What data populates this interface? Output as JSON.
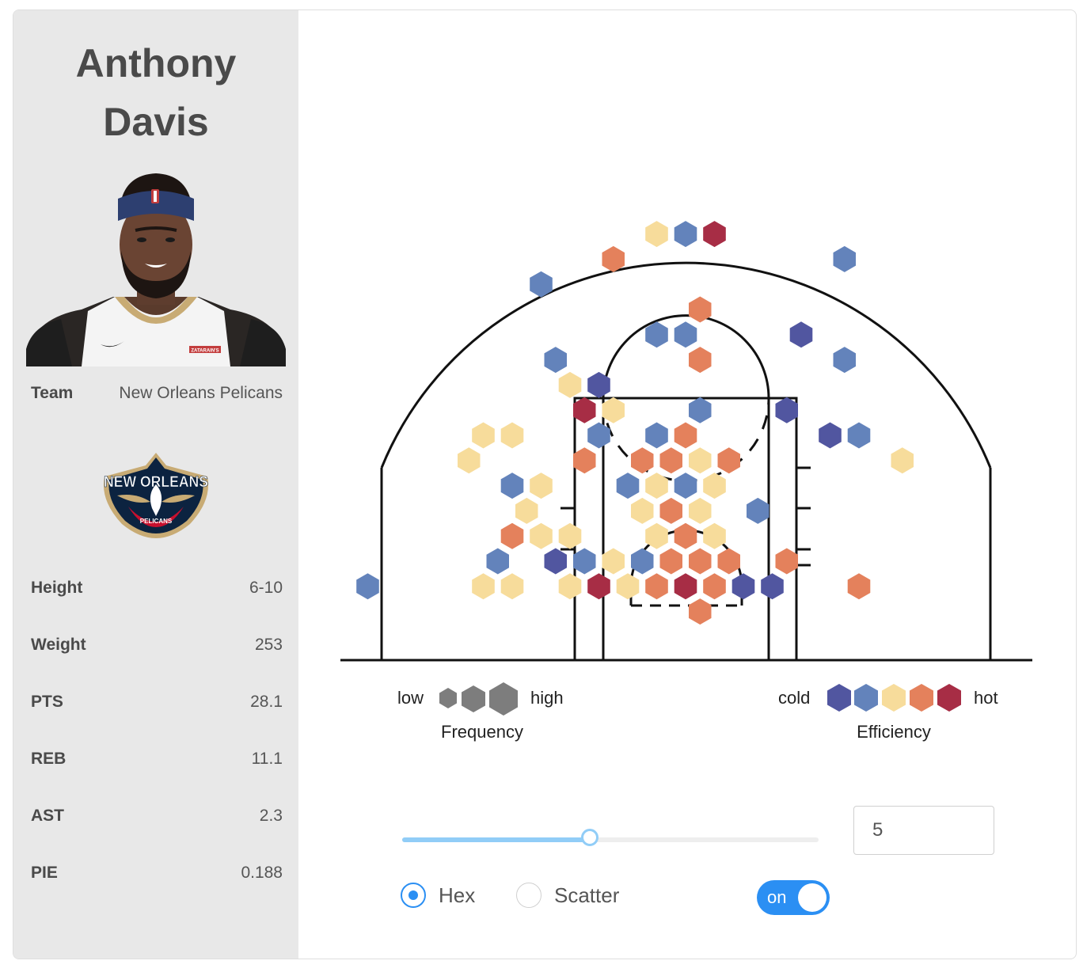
{
  "player": {
    "first_name": "Anthony",
    "last_name": "Davis",
    "team_label": "Team",
    "team_name": "New Orleans Pelicans",
    "logo_text_top": "NEW ORLEANS",
    "logo_text_bottom": "PELICANS",
    "jersey_sponsor": "ZATARAIN'S"
  },
  "stats": [
    {
      "label": "Height",
      "value": "6-10"
    },
    {
      "label": "Weight",
      "value": "253"
    },
    {
      "label": "PTS",
      "value": "28.1"
    },
    {
      "label": "REB",
      "value": "11.1"
    },
    {
      "label": "AST",
      "value": "2.3"
    },
    {
      "label": "PIE",
      "value": "0.188"
    }
  ],
  "legend": {
    "frequency_low": "low",
    "frequency_high": "high",
    "frequency_title": "Frequency",
    "efficiency_cold": "cold",
    "efficiency_hot": "hot",
    "efficiency_title": "Efficiency"
  },
  "colors": {
    "level_1": "#5156a0",
    "level_2": "#6383bb",
    "level_3": "#f7dc9b",
    "level_4": "#e4815c",
    "level_5": "#a72d45",
    "frequency_gray": "#7d7d7d",
    "accent": "#2b8ff3",
    "slider": "#91cdf7"
  },
  "controls": {
    "slider_fraction": 0.45,
    "min_count_value": "5",
    "chart_type_options": [
      {
        "label": "Hex",
        "selected": true
      },
      {
        "label": "Scatter",
        "selected": false
      }
    ],
    "toggle_label": "on",
    "toggle_on": true
  },
  "chart_data": {
    "type": "hexbin",
    "description": "shot chart",
    "columns": [
      "col",
      "row",
      "efficiency_level"
    ],
    "bins": [
      [
        -1,
        2,
        3
      ],
      [
        0,
        2,
        2
      ],
      [
        1,
        2,
        5
      ],
      [
        -3,
        3,
        4
      ],
      [
        5,
        3,
        2
      ],
      [
        -5,
        4,
        2
      ],
      [
        0,
        5,
        4
      ],
      [
        -1,
        6,
        2
      ],
      [
        0,
        6,
        2
      ],
      [
        4,
        6,
        1
      ],
      [
        -5,
        7,
        2
      ],
      [
        0,
        7,
        4
      ],
      [
        5,
        7,
        2
      ],
      [
        -4,
        8,
        3
      ],
      [
        -3,
        8,
        1
      ],
      [
        -4,
        9,
        5
      ],
      [
        -3,
        9,
        3
      ],
      [
        0,
        9,
        2
      ],
      [
        3,
        9,
        1
      ],
      [
        -7,
        10,
        3
      ],
      [
        -6,
        10,
        3
      ],
      [
        -3,
        10,
        2
      ],
      [
        -1,
        10,
        2
      ],
      [
        0,
        10,
        4
      ],
      [
        5,
        10,
        1
      ],
      [
        6,
        10,
        2
      ],
      [
        -8,
        11,
        3
      ],
      [
        -4,
        11,
        4
      ],
      [
        -2,
        11,
        4
      ],
      [
        -1,
        11,
        4
      ],
      [
        0,
        11,
        3
      ],
      [
        1,
        11,
        4
      ],
      [
        7,
        11,
        3
      ],
      [
        -6,
        12,
        2
      ],
      [
        -5,
        12,
        3
      ],
      [
        -2,
        12,
        2
      ],
      [
        -1,
        12,
        3
      ],
      [
        0,
        12,
        2
      ],
      [
        1,
        12,
        3
      ],
      [
        -6,
        13,
        3
      ],
      [
        -2,
        13,
        3
      ],
      [
        -1,
        13,
        4
      ],
      [
        0,
        13,
        3
      ],
      [
        2,
        13,
        2
      ],
      [
        -6,
        14,
        4
      ],
      [
        -5,
        14,
        3
      ],
      [
        -4,
        14,
        3
      ],
      [
        -1,
        14,
        3
      ],
      [
        0,
        14,
        4
      ],
      [
        1,
        14,
        3
      ],
      [
        -7,
        15,
        2
      ],
      [
        -5,
        15,
        1
      ],
      [
        -4,
        15,
        2
      ],
      [
        -3,
        15,
        3
      ],
      [
        -2,
        15,
        2
      ],
      [
        -1,
        15,
        4
      ],
      [
        0,
        15,
        4
      ],
      [
        1,
        15,
        4
      ],
      [
        3,
        15,
        4
      ],
      [
        -11,
        16,
        2
      ],
      [
        -7,
        16,
        3
      ],
      [
        -6,
        16,
        3
      ],
      [
        -4,
        16,
        3
      ],
      [
        -3,
        16,
        5
      ],
      [
        -2,
        16,
        3
      ],
      [
        -1,
        16,
        4
      ],
      [
        0,
        16,
        5
      ],
      [
        1,
        16,
        4
      ],
      [
        2,
        16,
        1
      ],
      [
        3,
        16,
        1
      ],
      [
        6,
        16,
        4
      ],
      [
        0,
        17,
        4
      ]
    ]
  }
}
